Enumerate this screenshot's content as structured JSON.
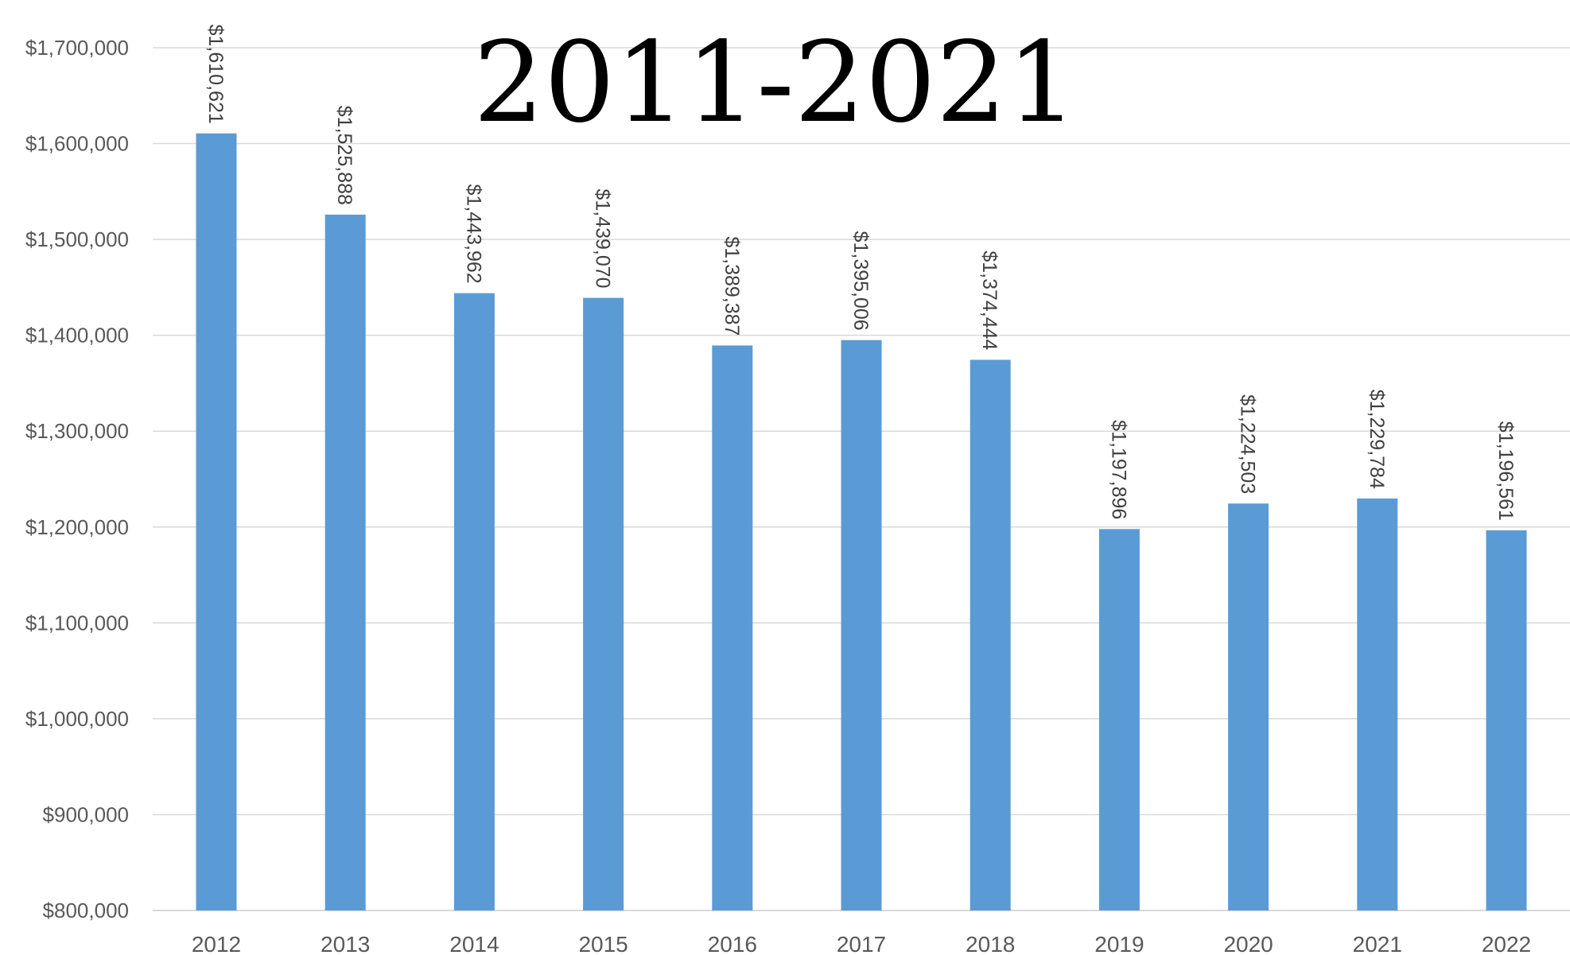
{
  "chart_data": {
    "type": "bar",
    "title": "2011-2021",
    "categories": [
      "2012",
      "2013",
      "2014",
      "2015",
      "2016",
      "2017",
      "2018",
      "2019",
      "2020",
      "2021",
      "2022"
    ],
    "values": [
      1610621,
      1525888,
      1443962,
      1439070,
      1389387,
      1395006,
      1374444,
      1197896,
      1224503,
      1229784,
      1196561
    ],
    "data_labels": [
      "$1,610,621",
      "$1,525,888",
      "$1,443,962",
      "$1,439,070",
      "$1,389,387",
      "$1,395,006",
      "$1,374,444",
      "$1,197,896",
      "$1,224,503",
      "$1,229,784",
      "$1,196,561"
    ],
    "y_ticks": [
      800000,
      900000,
      1000000,
      1100000,
      1200000,
      1300000,
      1400000,
      1500000,
      1600000,
      1700000
    ],
    "y_tick_labels": [
      "$800,000",
      "$900,000",
      "$1,000,000",
      "$1,100,000",
      "$1,200,000",
      "$1,300,000",
      "$1,400,000",
      "$1,500,000",
      "$1,600,000",
      "$1,700,000"
    ],
    "ylim": [
      800000,
      1700000
    ],
    "xlabel": "",
    "ylabel": "",
    "grid": true,
    "legend": "none",
    "bar_color": "#5b9bd5"
  }
}
